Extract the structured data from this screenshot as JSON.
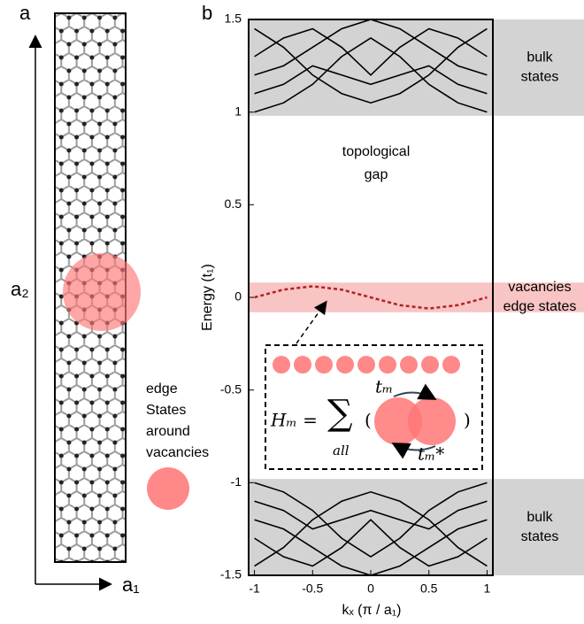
{
  "panel_a": {
    "letter": "a",
    "axis_a2": "a₂",
    "axis_a1": "a₁",
    "legend_text": [
      "edge",
      "States",
      "around",
      "vacancies"
    ]
  },
  "chart_data": {
    "type": "line",
    "panel_letter": "b",
    "xlabel": "kₓ (π / a₁)",
    "ylabel": "Energy (t₁)",
    "xlim": [
      -1.05,
      1.05
    ],
    "ylim": [
      -1.5,
      1.5
    ],
    "xticks": [
      -1,
      -0.5,
      0,
      0.5,
      1
    ],
    "yticks": [
      -1.5,
      -1,
      -0.5,
      0,
      0.5,
      1,
      1.5
    ],
    "x": [
      -1,
      -0.75,
      -0.5,
      -0.25,
      0,
      0.25,
      0.5,
      0.75,
      1
    ],
    "shaded_ranges": [
      {
        "ylim": [
          0.98,
          1.5
        ],
        "color": "#d3d3d3",
        "label": [
          "bulk",
          "states"
        ]
      },
      {
        "ylim": [
          -1.5,
          -0.98
        ],
        "color": "#d3d3d3",
        "label": [
          "bulk",
          "states"
        ]
      },
      {
        "ylim": [
          -0.08,
          0.08
        ],
        "color": "#f8c4c4",
        "label": [
          "vacancies",
          "edge states"
        ]
      }
    ],
    "annotation": [
      "topological",
      "gap"
    ],
    "series": [
      {
        "color": "#000000",
        "values": [
          1.0,
          1.05,
          1.15,
          1.3,
          1.4,
          1.3,
          1.15,
          1.05,
          1.0
        ]
      },
      {
        "color": "#000000",
        "values": [
          1.45,
          1.35,
          1.2,
          1.1,
          1.05,
          1.1,
          1.2,
          1.35,
          1.45
        ]
      },
      {
        "color": "#000000",
        "values": [
          1.2,
          1.25,
          1.35,
          1.45,
          1.5,
          1.45,
          1.35,
          1.25,
          1.2
        ]
      },
      {
        "color": "#000000",
        "values": [
          1.3,
          1.4,
          1.45,
          1.35,
          1.2,
          1.35,
          1.45,
          1.4,
          1.3
        ]
      },
      {
        "color": "#000000",
        "values": [
          1.1,
          1.15,
          1.25,
          1.2,
          1.15,
          1.2,
          1.25,
          1.15,
          1.1
        ]
      },
      {
        "color": "#000000",
        "values": [
          -1.0,
          -1.05,
          -1.15,
          -1.3,
          -1.4,
          -1.3,
          -1.15,
          -1.05,
          -1.0
        ]
      },
      {
        "color": "#000000",
        "values": [
          -1.45,
          -1.35,
          -1.2,
          -1.1,
          -1.05,
          -1.1,
          -1.2,
          -1.35,
          -1.45
        ]
      },
      {
        "color": "#000000",
        "values": [
          -1.2,
          -1.25,
          -1.35,
          -1.45,
          -1.5,
          -1.45,
          -1.35,
          -1.25,
          -1.2
        ]
      },
      {
        "color": "#000000",
        "values": [
          -1.3,
          -1.4,
          -1.45,
          -1.35,
          -1.2,
          -1.35,
          -1.45,
          -1.4,
          -1.3
        ]
      },
      {
        "color": "#000000",
        "values": [
          -1.1,
          -1.15,
          -1.25,
          -1.2,
          -1.15,
          -1.2,
          -1.25,
          -1.15,
          -1.1
        ]
      },
      {
        "color": "#b22222",
        "dashed": true,
        "values": [
          0,
          0.042,
          0.06,
          0.042,
          0,
          -0.042,
          -0.06,
          -0.042,
          0
        ]
      }
    ],
    "inset": {
      "lhs": "Hₘ =",
      "sum": "∑",
      "sum_sub": "all",
      "open": "(",
      "close": ")",
      "hop": "tₘ",
      "hop_conj": "tₘ*"
    }
  }
}
